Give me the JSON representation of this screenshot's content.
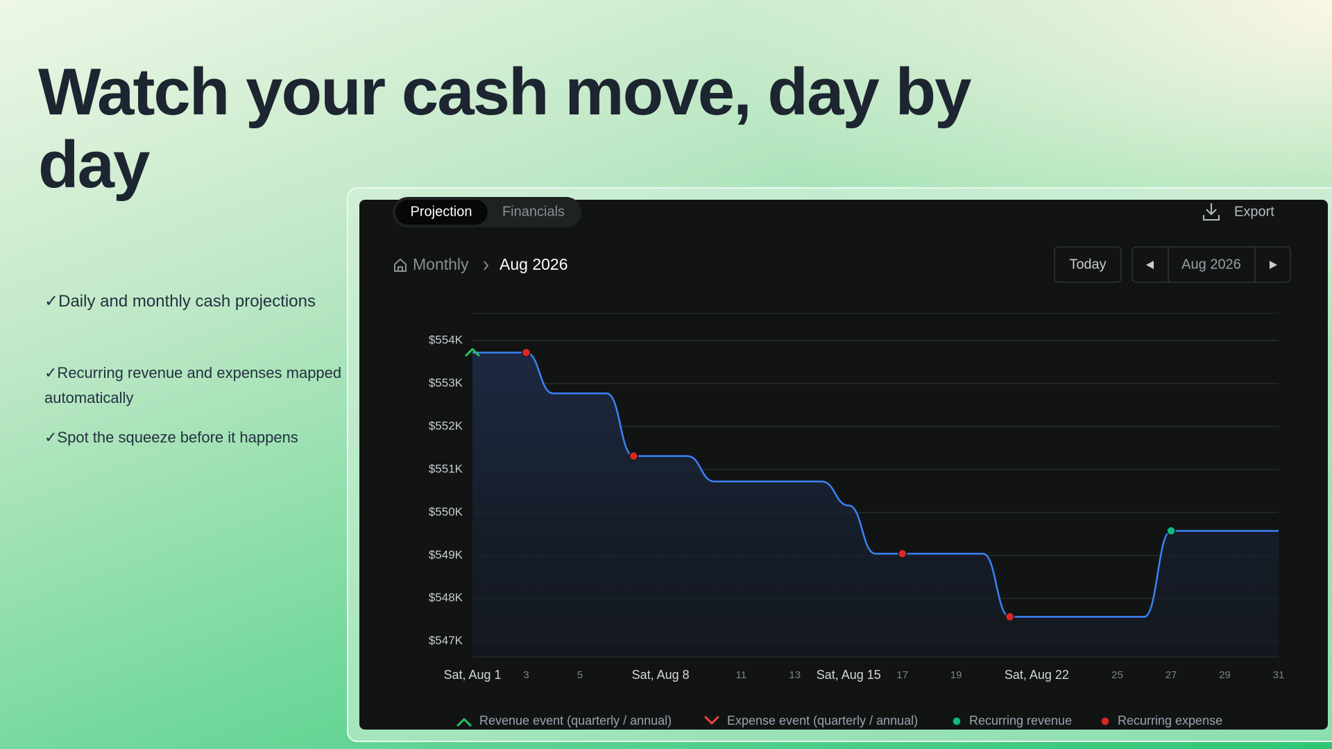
{
  "headline": "Watch your cash move, day by day",
  "bullets": [
    "✓Daily and monthly cash projections",
    "✓Recurring revenue and expenses mapped automatically",
    "✓Spot the squeeze before it happens"
  ],
  "toolbar": {
    "tabs": [
      "Projection",
      "Financials"
    ],
    "export": "Export"
  },
  "breadcrumb": [
    "Monthly",
    "Aug 2026"
  ],
  "period_nav": {
    "today": "Today",
    "period": "Aug 2026"
  },
  "chart_data": {
    "type": "line",
    "area": true,
    "color": "#3b82f6",
    "x": [
      1,
      2,
      3,
      4,
      5,
      6,
      7,
      8,
      9,
      10,
      11,
      12,
      13,
      14,
      15,
      16,
      17,
      18,
      19,
      20,
      21,
      22,
      23,
      24,
      25,
      26,
      27,
      28,
      29,
      30,
      31
    ],
    "values": [
      553720,
      553720,
      553720,
      552770,
      552770,
      552770,
      551310,
      551310,
      551310,
      550720,
      550720,
      550720,
      550720,
      550720,
      550160,
      549040,
      549040,
      549040,
      549040,
      549040,
      547570,
      547570,
      547570,
      547570,
      547570,
      547570,
      549570,
      549570,
      549570,
      549570,
      549570
    ],
    "xlim": [
      1,
      31
    ],
    "xticks": [
      {
        "value": 1,
        "label": "Sat, Aug 1"
      },
      3,
      5,
      {
        "value": 8,
        "label": "Sat, Aug 8"
      },
      11,
      13,
      {
        "value": 15,
        "label": "Sat, Aug 15"
      },
      17,
      19,
      {
        "value": 22,
        "label": "Sat, Aug 22"
      },
      25,
      27,
      29,
      31
    ],
    "ylim": [
      546640,
      554630
    ],
    "yticks": [
      {
        "value": 554000,
        "label": "$554K"
      },
      {
        "value": 553000,
        "label": "$553K"
      },
      {
        "value": 552000,
        "label": "$552K"
      },
      {
        "value": 551000,
        "label": "$551K"
      },
      {
        "value": 550000,
        "label": "$550K"
      },
      {
        "value": 549000,
        "label": "$549K"
      },
      {
        "value": 548000,
        "label": "$548K"
      },
      {
        "value": 547000,
        "label": "$547K"
      }
    ],
    "grid": true,
    "events": [
      {
        "name": "Revenue event (quarterly / annual)",
        "color": "#22c55e",
        "marker": "chevron-up",
        "x": [
          1
        ]
      },
      {
        "name": "Expense event (quarterly / annual)",
        "color": "#ef4444",
        "marker": "chevron-down",
        "x": []
      },
      {
        "name": "Recurring revenue",
        "color": "#10b981",
        "marker": "dot",
        "x": [
          27
        ]
      },
      {
        "name": "Recurring expense",
        "color": "#dc2626",
        "marker": "dot",
        "x": [
          3,
          7,
          17,
          21
        ]
      }
    ]
  }
}
